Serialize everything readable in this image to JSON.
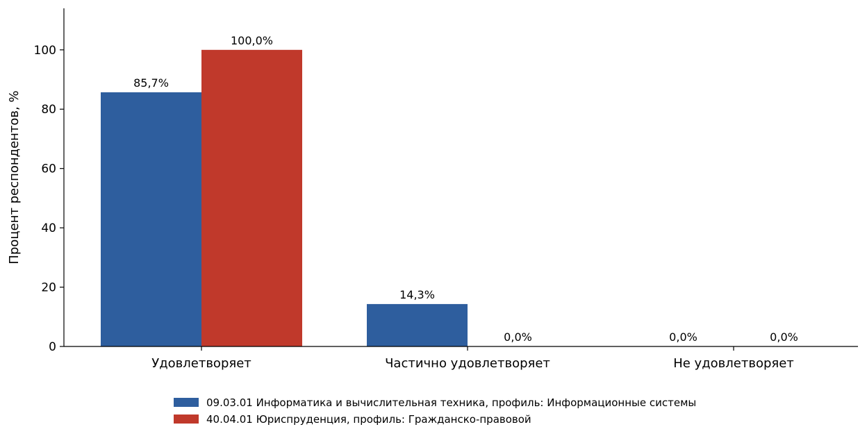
{
  "chart_data": {
    "type": "bar",
    "title": "",
    "xlabel": "",
    "ylabel": "Процент респондентов, %",
    "ylim": [
      0,
      114
    ],
    "yticks": [
      0,
      20,
      40,
      60,
      80,
      100
    ],
    "grid": false,
    "legend_position": "bottom-center",
    "categories": [
      "Удовлетворяет",
      "Частично удовлетворяет",
      "Не удовлетворяет"
    ],
    "series": [
      {
        "name": "09.03.01 Информатика и вычислительная техника, профиль: Информационные системы",
        "color": "#2e5e9e",
        "values": [
          85.7,
          14.3,
          0.0
        ],
        "labels": [
          "85,7%",
          "14,3%",
          "0,0%"
        ]
      },
      {
        "name": "40.04.01 Юриспруденция, профиль: Гражданско-правовой",
        "color": "#c0392b",
        "values": [
          100.0,
          0.0,
          0.0
        ],
        "labels": [
          "100,0%",
          "0,0%",
          "0,0%"
        ]
      }
    ]
  }
}
